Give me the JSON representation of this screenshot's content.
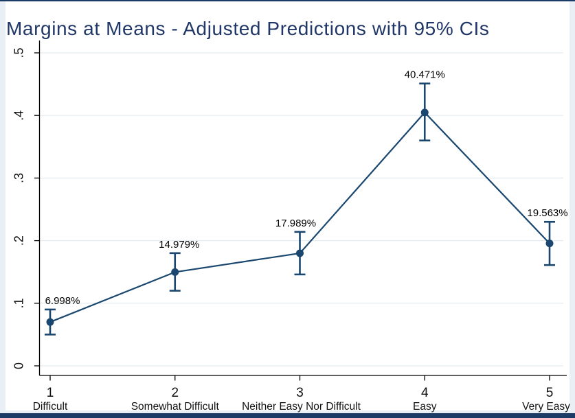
{
  "window": {
    "frame_color": "#e9eff5",
    "canvas_color": "#ffffff",
    "top_border_color": "#1c3a66",
    "bottom_bar_color": "#1c3a66"
  },
  "chart_data": {
    "type": "line",
    "title": "Margins at Means - Adjusted Predictions with 95% CIs",
    "title_color": "#203767",
    "series_color": "#1a476f",
    "axis_color": "#000000",
    "tick_label_color": "#111111",
    "gridline_color": "#e3ecf1",
    "grid": true,
    "legend": "none",
    "xlabel": "",
    "ylabel": "",
    "x": [
      1,
      2,
      3,
      4,
      5
    ],
    "x_tick_labels": [
      "1",
      "2",
      "3",
      "4",
      "5"
    ],
    "x_category_labels": [
      "Difficult",
      "Somewhat Difficult",
      "Neither Easy Nor Difficult",
      "Easy",
      "Very Easy"
    ],
    "y_ticks": [
      0,
      0.1,
      0.2,
      0.3,
      0.4,
      0.5
    ],
    "y_tick_labels": [
      "0",
      ".1",
      ".2",
      ".3",
      ".4",
      ".5"
    ],
    "ylim": [
      0,
      0.5
    ],
    "values": [
      0.06998,
      0.14979,
      0.17989,
      0.40471,
      0.19563
    ],
    "point_labels": [
      "6.998%",
      "14.979%",
      "17.989%",
      "40.471%",
      "19.563%"
    ],
    "ci_low": [
      0.05,
      0.12,
      0.146,
      0.36,
      0.161
    ],
    "ci_high": [
      0.09,
      0.18,
      0.214,
      0.451,
      0.23
    ],
    "label_dx": [
      18,
      6,
      -6,
      0,
      -3
    ],
    "category_dx": [
      0,
      0,
      2,
      0,
      -5
    ]
  }
}
